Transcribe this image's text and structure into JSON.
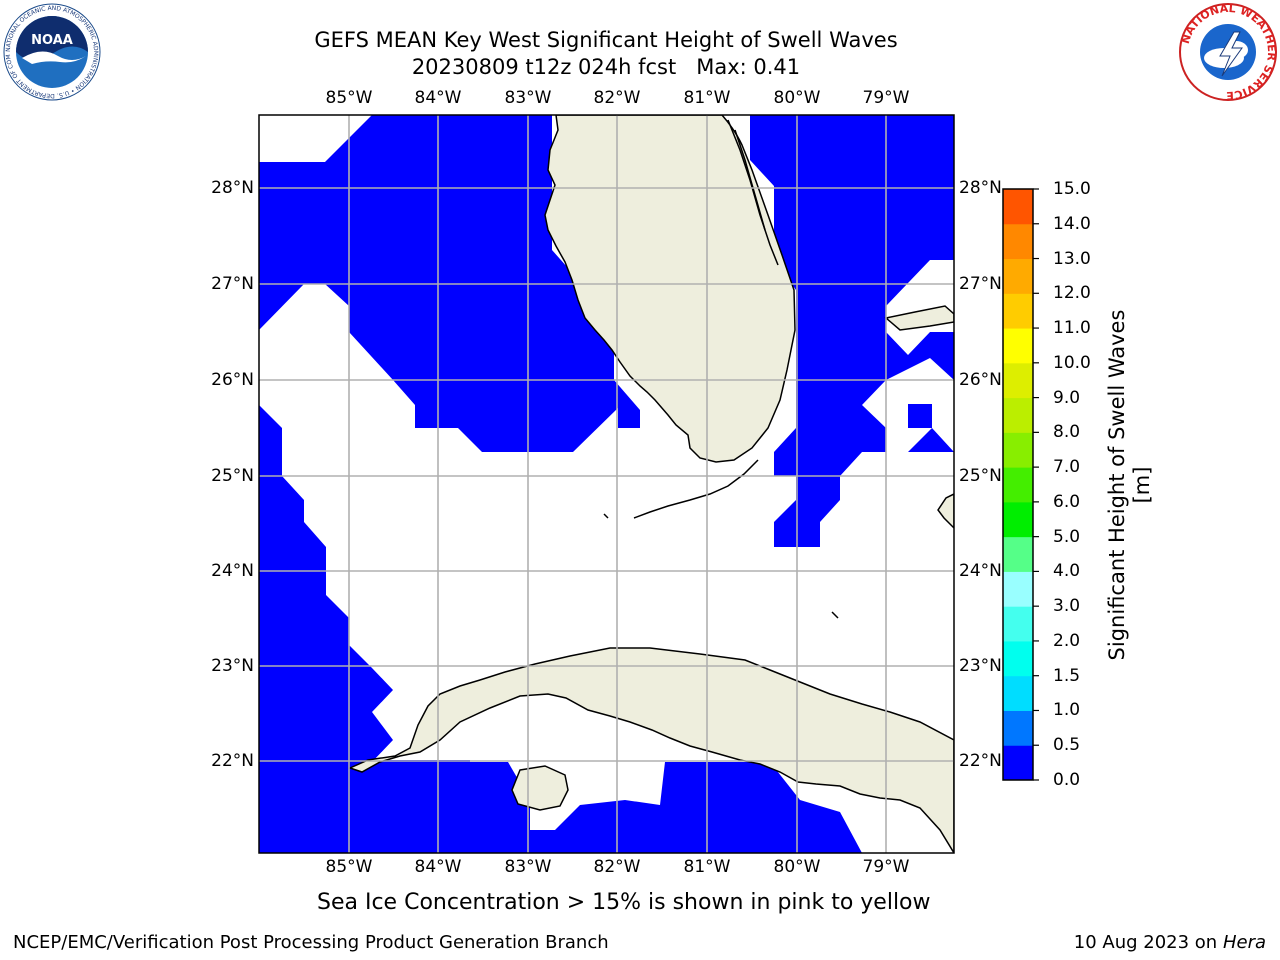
{
  "header": {
    "title_line1": "GEFS MEAN Key West Significant Height of Swell Waves",
    "title_line2": "20230809 t12z 024h fcst   Max: 0.41"
  },
  "map": {
    "lon_labels": [
      "85°W",
      "84°W",
      "83°W",
      "82°W",
      "81°W",
      "80°W",
      "79°W"
    ],
    "lat_labels": [
      "28°N",
      "27°N",
      "26°N",
      "25°N",
      "24°N",
      "23°N",
      "22°N"
    ],
    "land_color": "#eeeedd",
    "field_color": "#0000ff",
    "grid_color": "#b0b0b0"
  },
  "colorbar": {
    "label": "Significant Height of Swell Waves [m]",
    "ticks": [
      "0.0",
      "0.5",
      "1.0",
      "1.5",
      "2.0",
      "3.0",
      "4.0",
      "5.0",
      "6.0",
      "7.0",
      "8.0",
      "9.0",
      "10.0",
      "11.0",
      "12.0",
      "13.0",
      "14.0",
      "15.0"
    ],
    "colors": [
      "#0000ff",
      "#0077ff",
      "#00ddff",
      "#00ffee",
      "#44ffee",
      "#99ffff",
      "#55ff88",
      "#00ee00",
      "#44ee00",
      "#88ee00",
      "#bbee00",
      "#ddee00",
      "#ffff00",
      "#ffcc00",
      "#ffaa00",
      "#ff8800",
      "#ff5500",
      "#ff2200",
      "#ff0000"
    ]
  },
  "logos": {
    "noaa": {
      "text": "NOAA",
      "ring_text": "NATIONAL OCEANIC AND ATMOSPHERIC ADMINISTRATION • U.S. DEPARTMENT OF COMMERCE"
    },
    "nws": {
      "ring_text": "NATIONAL WEATHER SERVICE"
    }
  },
  "footer": {
    "note": "Sea Ice Concentration > 15% is shown in pink to yellow",
    "left": "NCEP/EMC/Verification Post Processing Product Generation Branch",
    "right_date": "10 Aug 2023 on",
    "right_host": "Hera"
  }
}
